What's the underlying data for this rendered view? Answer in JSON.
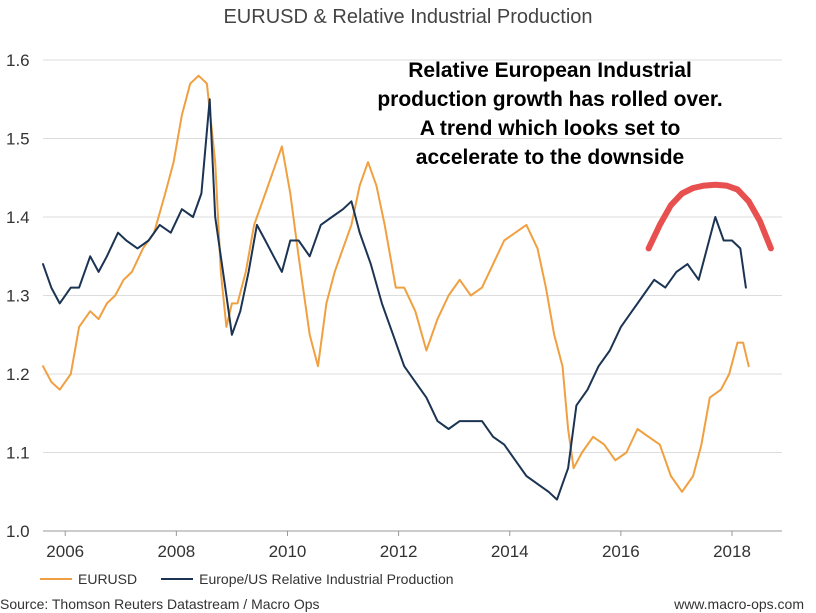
{
  "title": "EURUSD & Relative Industrial Production",
  "annotation": [
    "Relative European Industrial",
    "production growth has rolled over.",
    "A trend which looks set to",
    "accelerate to the downside"
  ],
  "source": "Source: Thomson Reuters Datastream / Macro Ops",
  "website": "www.macro-ops.com",
  "chart_data": {
    "type": "line",
    "title": "EURUSD & Relative Industrial Production",
    "xlabel": "",
    "ylabel": "",
    "xlim": [
      2005.6,
      2018.9
    ],
    "ylim": [
      1.0,
      1.6
    ],
    "xticks": [
      2006,
      2008,
      2010,
      2012,
      2014,
      2016,
      2018
    ],
    "xtick_labels": [
      "2006",
      "2008",
      "2010",
      "2012",
      "2014",
      "2016",
      "2018"
    ],
    "yticks": [
      1.0,
      1.1,
      1.2,
      1.3,
      1.4,
      1.5,
      1.6
    ],
    "ytick_labels": [
      "1.0",
      "1.1",
      "1.2",
      "1.3",
      "1.4",
      "1.5",
      "1.6"
    ],
    "grid": "horizontal",
    "legend_position": "bottom-left",
    "series": [
      {
        "name": "EURUSD",
        "color": "#f0a040",
        "x": [
          2005.6,
          2005.75,
          2005.9,
          2006.1,
          2006.25,
          2006.45,
          2006.6,
          2006.75,
          2006.9,
          2007.05,
          2007.2,
          2007.4,
          2007.6,
          2007.8,
          2007.95,
          2008.1,
          2008.25,
          2008.4,
          2008.55,
          2008.7,
          2008.8,
          2008.9,
          2009.0,
          2009.1,
          2009.25,
          2009.4,
          2009.6,
          2009.75,
          2009.9,
          2010.05,
          2010.2,
          2010.4,
          2010.55,
          2010.7,
          2010.85,
          2011.0,
          2011.15,
          2011.3,
          2011.45,
          2011.6,
          2011.75,
          2011.95,
          2012.1,
          2012.3,
          2012.5,
          2012.7,
          2012.9,
          2013.1,
          2013.3,
          2013.5,
          2013.7,
          2013.9,
          2014.1,
          2014.3,
          2014.5,
          2014.65,
          2014.8,
          2014.95,
          2015.05,
          2015.15,
          2015.3,
          2015.5,
          2015.7,
          2015.9,
          2016.1,
          2016.3,
          2016.5,
          2016.7,
          2016.9,
          2017.1,
          2017.3,
          2017.45,
          2017.6,
          2017.8,
          2017.95,
          2018.1,
          2018.2,
          2018.3
        ],
        "y": [
          1.21,
          1.19,
          1.18,
          1.2,
          1.26,
          1.28,
          1.27,
          1.29,
          1.3,
          1.32,
          1.33,
          1.36,
          1.38,
          1.43,
          1.47,
          1.53,
          1.57,
          1.58,
          1.57,
          1.47,
          1.33,
          1.26,
          1.29,
          1.29,
          1.33,
          1.39,
          1.43,
          1.46,
          1.49,
          1.43,
          1.35,
          1.25,
          1.21,
          1.29,
          1.33,
          1.36,
          1.39,
          1.44,
          1.47,
          1.44,
          1.39,
          1.31,
          1.31,
          1.28,
          1.23,
          1.27,
          1.3,
          1.32,
          1.3,
          1.31,
          1.34,
          1.37,
          1.38,
          1.39,
          1.36,
          1.31,
          1.25,
          1.21,
          1.13,
          1.08,
          1.1,
          1.12,
          1.11,
          1.09,
          1.1,
          1.13,
          1.12,
          1.11,
          1.07,
          1.05,
          1.07,
          1.11,
          1.17,
          1.18,
          1.2,
          1.24,
          1.24,
          1.21
        ]
      },
      {
        "name": "Europe/US Relative Industrial Production",
        "color": "#1b3453",
        "x": [
          2005.6,
          2005.75,
          2005.9,
          2006.1,
          2006.25,
          2006.45,
          2006.6,
          2006.75,
          2006.95,
          2007.1,
          2007.3,
          2007.5,
          2007.7,
          2007.9,
          2008.1,
          2008.3,
          2008.45,
          2008.6,
          2008.7,
          2008.8,
          2008.9,
          2009.0,
          2009.15,
          2009.3,
          2009.45,
          2009.6,
          2009.75,
          2009.9,
          2010.05,
          2010.2,
          2010.4,
          2010.6,
          2010.8,
          2011.0,
          2011.15,
          2011.3,
          2011.5,
          2011.7,
          2011.9,
          2012.1,
          2012.3,
          2012.5,
          2012.7,
          2012.9,
          2013.1,
          2013.3,
          2013.5,
          2013.7,
          2013.9,
          2014.1,
          2014.3,
          2014.5,
          2014.7,
          2014.85,
          2014.95,
          2015.05,
          2015.2,
          2015.4,
          2015.6,
          2015.8,
          2016.0,
          2016.2,
          2016.4,
          2016.6,
          2016.8,
          2017.0,
          2017.2,
          2017.4,
          2017.55,
          2017.7,
          2017.85,
          2018.0,
          2018.15,
          2018.25
        ],
        "y": [
          1.34,
          1.31,
          1.29,
          1.31,
          1.31,
          1.35,
          1.33,
          1.35,
          1.38,
          1.37,
          1.36,
          1.37,
          1.39,
          1.38,
          1.41,
          1.4,
          1.43,
          1.55,
          1.4,
          1.35,
          1.3,
          1.25,
          1.28,
          1.33,
          1.39,
          1.37,
          1.35,
          1.33,
          1.37,
          1.37,
          1.35,
          1.39,
          1.4,
          1.41,
          1.42,
          1.38,
          1.34,
          1.29,
          1.25,
          1.21,
          1.19,
          1.17,
          1.14,
          1.13,
          1.14,
          1.14,
          1.14,
          1.12,
          1.11,
          1.09,
          1.07,
          1.06,
          1.05,
          1.04,
          1.06,
          1.08,
          1.16,
          1.18,
          1.21,
          1.23,
          1.26,
          1.28,
          1.3,
          1.32,
          1.31,
          1.33,
          1.34,
          1.32,
          1.36,
          1.4,
          1.37,
          1.37,
          1.36,
          1.31
        ]
      },
      {
        "name": "",
        "color": "#e85050",
        "x": [
          2016.5,
          2016.7,
          2016.9,
          2017.1,
          2017.3,
          2017.5,
          2017.7,
          2017.9,
          2018.1,
          2018.3,
          2018.5,
          2018.7
        ],
        "y": [
          1.36,
          1.39,
          1.415,
          1.43,
          1.437,
          1.44,
          1.441,
          1.44,
          1.435,
          1.42,
          1.395,
          1.36
        ]
      }
    ]
  }
}
